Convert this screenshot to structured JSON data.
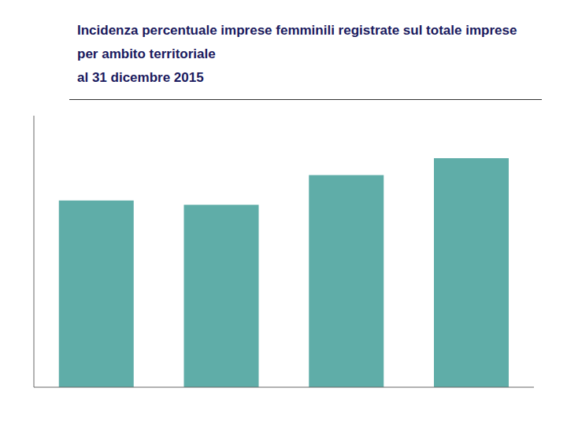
{
  "chart_data": {
    "type": "bar",
    "title": "Incidenza percentuale imprese femminili registrate sul totale imprese per ambito territoriale",
    "subtitle": "al 31 dicembre 2015",
    "categories": [
      null,
      null,
      null,
      null
    ],
    "values": [
      22,
      21.5,
      25,
      27
    ],
    "color": "#5FADA8",
    "ylim": [
      0,
      32
    ],
    "grid": false,
    "tick_labels": false
  }
}
